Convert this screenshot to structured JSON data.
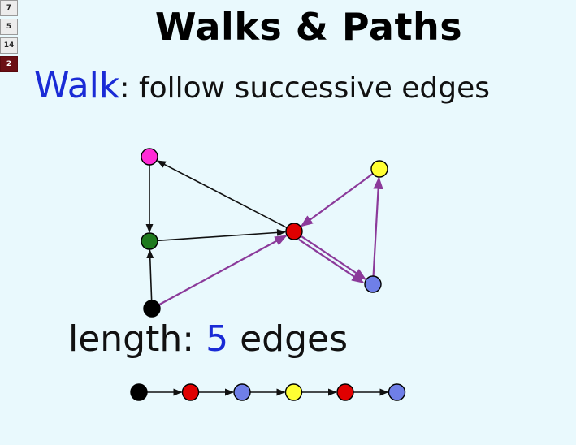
{
  "slide_nav": {
    "items": [
      {
        "label": "7",
        "active": false
      },
      {
        "label": "5",
        "active": false
      },
      {
        "label": "14",
        "active": false
      },
      {
        "label": "2",
        "active": true
      }
    ]
  },
  "title": "Walks & Paths",
  "walk_definition": {
    "term": "Walk",
    "separator": ":",
    "description": "follow successive edges"
  },
  "length": {
    "label": "length:",
    "value": "5",
    "unit": "edges"
  },
  "colors": {
    "plain_edge": "#111111",
    "walk_edge": "#8b3a9a",
    "accent_text": "#1a2bd6",
    "node_stroke": "#000000"
  },
  "graph": {
    "nodes": [
      {
        "id": "magenta",
        "color": "#ff2bd6"
      },
      {
        "id": "green",
        "color": "#1e7a1e"
      },
      {
        "id": "black",
        "color": "#000000"
      },
      {
        "id": "red",
        "color": "#e00000"
      },
      {
        "id": "yellow",
        "color": "#ffff33"
      },
      {
        "id": "blue",
        "color": "#6f7fe8"
      }
    ],
    "edges": [
      {
        "from": "magenta",
        "to": "green",
        "walk": false
      },
      {
        "from": "black",
        "to": "green",
        "walk": false
      },
      {
        "from": "green",
        "to": "red",
        "walk": false
      },
      {
        "from": "red",
        "to": "magenta",
        "walk": false
      },
      {
        "from": "black",
        "to": "red",
        "walk": true
      },
      {
        "from": "red",
        "to": "blue",
        "walk": true
      },
      {
        "from": "blue",
        "to": "yellow",
        "walk": true
      },
      {
        "from": "yellow",
        "to": "red",
        "walk": true
      },
      {
        "from": "red",
        "to": "blue",
        "walk": true
      }
    ]
  },
  "walk_sequence": [
    "black",
    "red",
    "blue",
    "yellow",
    "red",
    "blue"
  ]
}
